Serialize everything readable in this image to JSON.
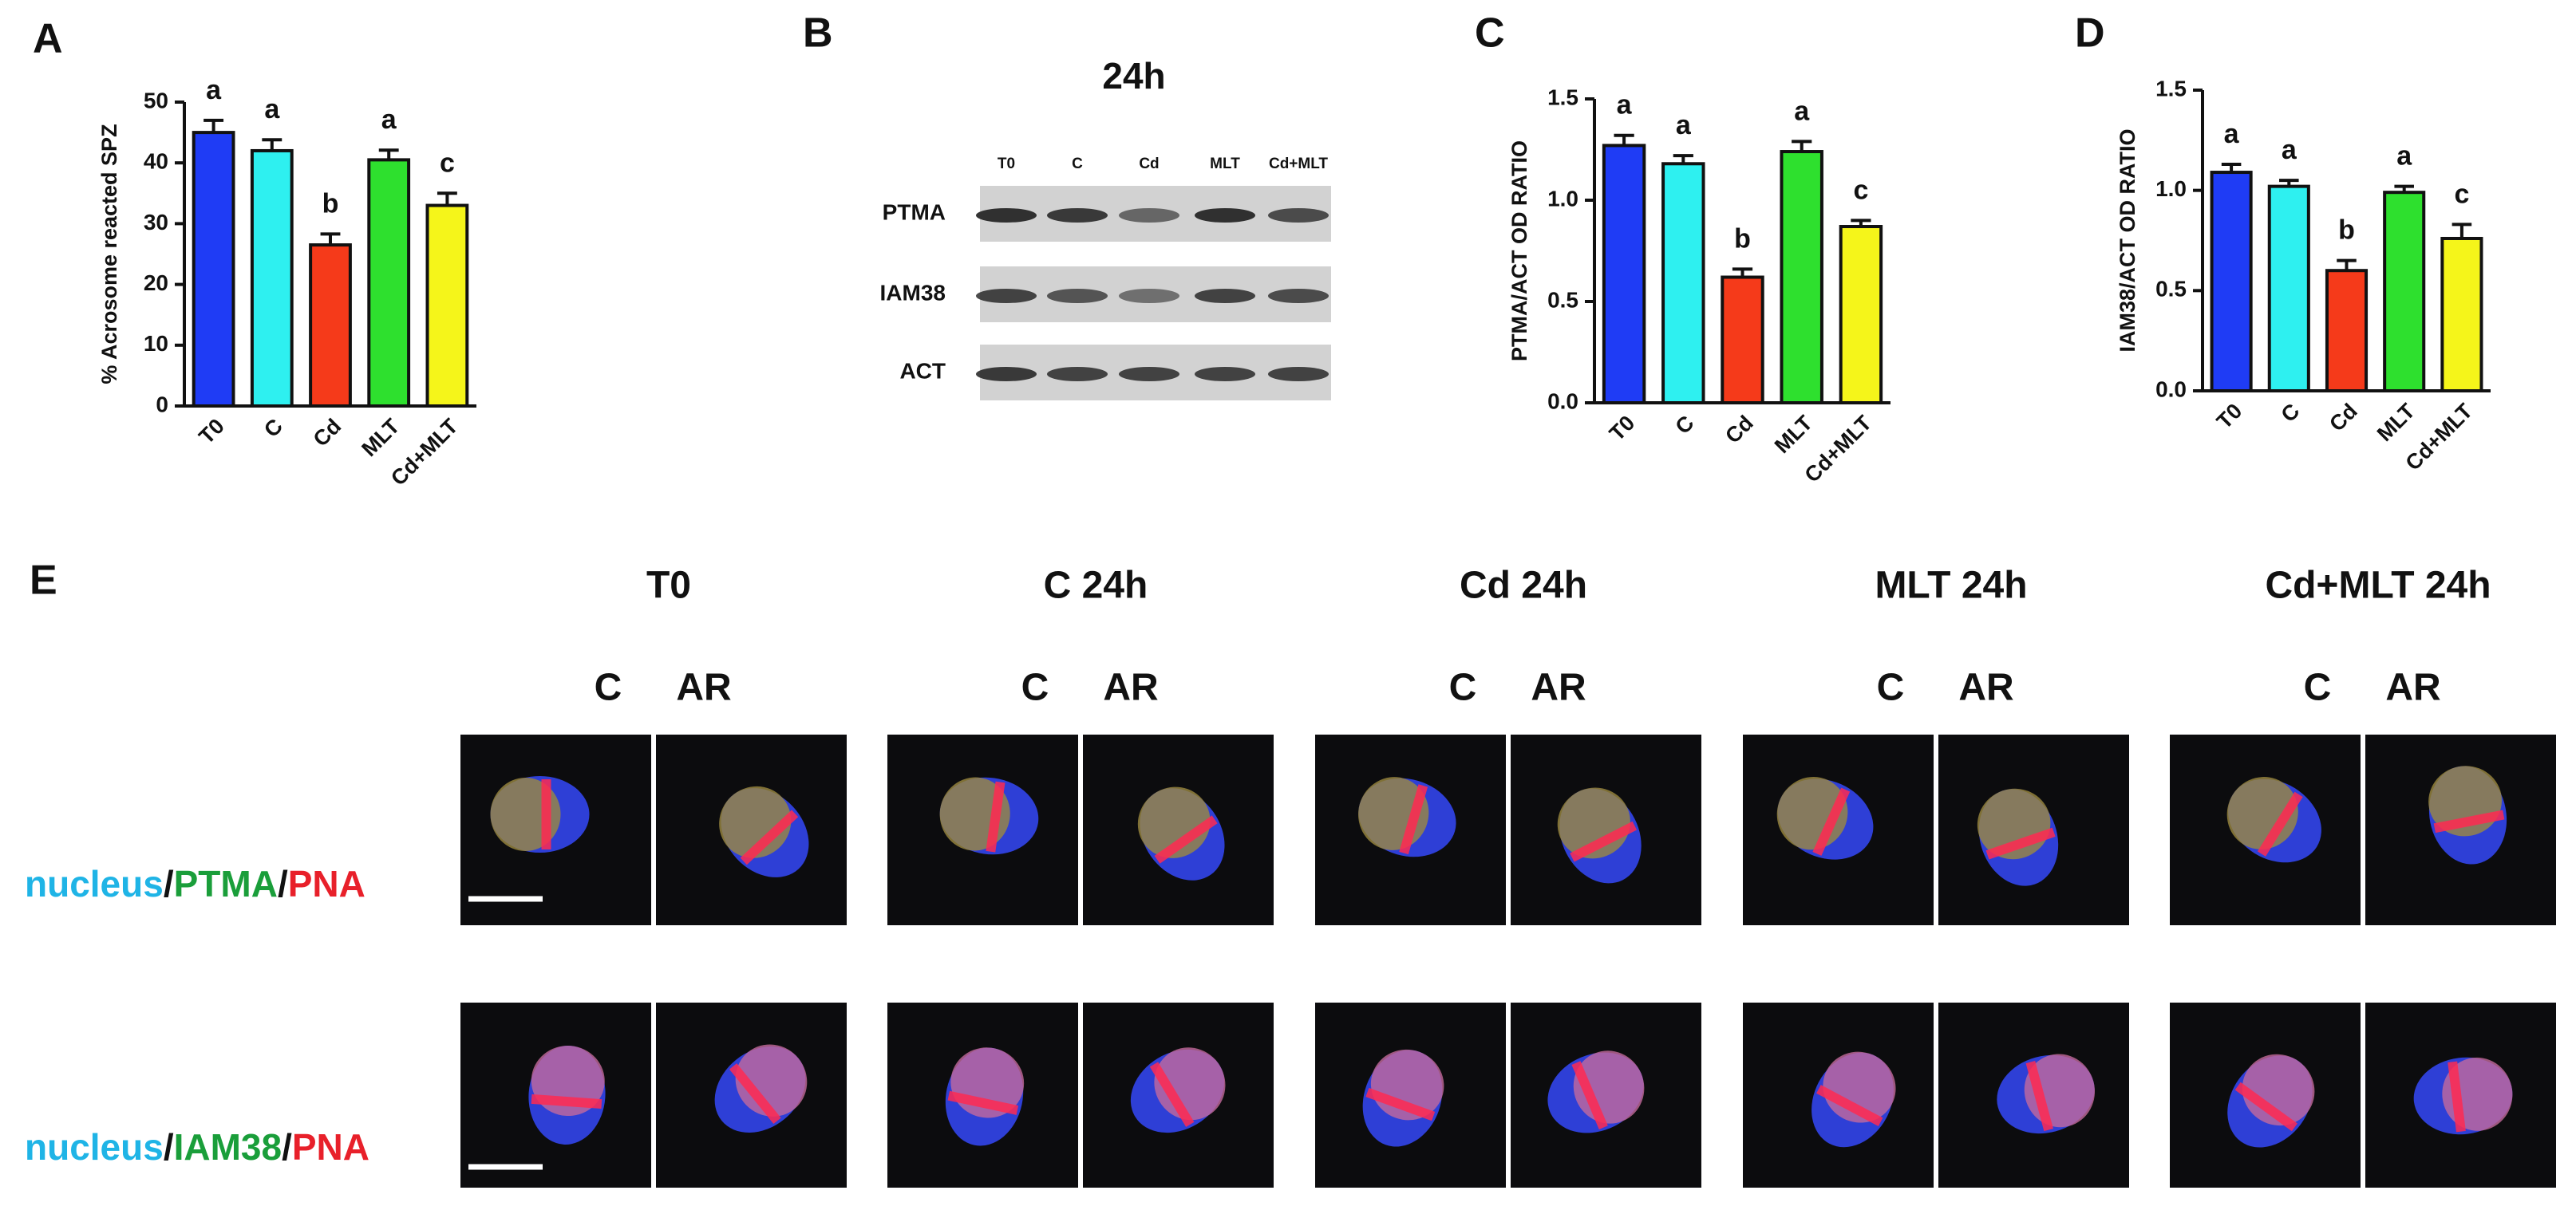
{
  "chart_data": [
    {
      "type": "bar",
      "panel": "A",
      "ylabel": "% Acrosome reacted SPZ",
      "categories": [
        "T0",
        "C",
        "Cd",
        "MLT",
        "Cd+MLT"
      ],
      "values": [
        45,
        42,
        26.5,
        40.5,
        33
      ],
      "errors": [
        2,
        1.8,
        1.8,
        1.6,
        2
      ],
      "letters": [
        "a",
        "a",
        "b",
        "a",
        "c"
      ],
      "colors": [
        "#1f3cf5",
        "#2ef0f0",
        "#f53a1a",
        "#2ee02e",
        "#f5f51a"
      ],
      "ylim": [
        0,
        50
      ],
      "yticks": [
        0,
        10,
        20,
        30,
        40,
        50
      ]
    },
    {
      "type": "bar",
      "panel": "C",
      "ylabel": "PTMA/ACT OD RATIO",
      "categories": [
        "T0",
        "C",
        "Cd",
        "MLT",
        "Cd+MLT"
      ],
      "values": [
        1.27,
        1.18,
        0.62,
        1.24,
        0.87
      ],
      "errors": [
        0.05,
        0.04,
        0.04,
        0.05,
        0.03
      ],
      "letters": [
        "a",
        "a",
        "b",
        "a",
        "c"
      ],
      "colors": [
        "#1f3cf5",
        "#2ef0f0",
        "#f53a1a",
        "#2ee02e",
        "#f5f51a"
      ],
      "ylim": [
        0,
        1.5
      ],
      "yticks": [
        {
          "value": 0,
          "label": "0.0"
        },
        {
          "value": 0.5,
          "label": "0.5"
        },
        {
          "value": 1,
          "label": "1.0"
        },
        {
          "value": 1.5,
          "label": "1.5"
        }
      ]
    },
    {
      "type": "bar",
      "panel": "D",
      "ylabel": "IAM38/ACT OD RATIO",
      "categories": [
        "T0",
        "C",
        "Cd",
        "MLT",
        "Cd+MLT"
      ],
      "values": [
        1.09,
        1.02,
        0.6,
        0.99,
        0.76
      ],
      "errors": [
        0.04,
        0.03,
        0.05,
        0.03,
        0.07
      ],
      "letters": [
        "a",
        "a",
        "b",
        "a",
        "c"
      ],
      "colors": [
        "#1f3cf5",
        "#2ef0f0",
        "#f53a1a",
        "#2ee02e",
        "#f5f51a"
      ],
      "ylim": [
        0,
        1.5
      ],
      "yticks": [
        {
          "value": 0,
          "label": "0.0"
        },
        {
          "value": 0.5,
          "label": "0.5"
        },
        {
          "value": 1,
          "label": "1.0"
        },
        {
          "value": 1.5,
          "label": "1.5"
        }
      ]
    }
  ],
  "blot": {
    "panel": "B",
    "title": "24h",
    "lanes": [
      "T0",
      "C",
      "Cd",
      "MLT",
      "Cd+MLT"
    ],
    "rows": [
      "PTMA",
      "IAM38",
      "ACT"
    ]
  },
  "imaging": {
    "panel": "E",
    "groups": [
      {
        "title": "T0",
        "columns": [
          "C",
          "AR"
        ]
      },
      {
        "title": "C 24h",
        "columns": [
          "C",
          "AR"
        ]
      },
      {
        "title": "Cd 24h",
        "columns": [
          "C",
          "AR"
        ]
      },
      {
        "title": "MLT 24h",
        "columns": [
          "C",
          "AR"
        ]
      },
      {
        "title": "Cd+MLT 24h",
        "columns": [
          "C",
          "AR"
        ]
      }
    ],
    "rows": [
      {
        "parts": [
          "nucleus",
          "/",
          "PTMA",
          "/",
          "PNA"
        ]
      },
      {
        "parts": [
          "nucleus",
          "/",
          "IAM38",
          "/",
          "PNA"
        ]
      }
    ]
  }
}
